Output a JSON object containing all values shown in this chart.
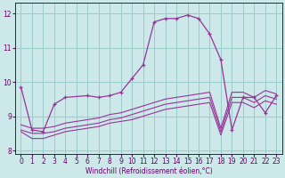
{
  "xlabel": "Windchill (Refroidissement éolien,°C)",
  "background_color": "#cce8e8",
  "grid_color": "#99cccc",
  "line_color": "#993399",
  "xlim": [
    -0.5,
    23.5
  ],
  "ylim": [
    7.9,
    12.3
  ],
  "yticks": [
    8,
    9,
    10,
    11,
    12
  ],
  "xticks": [
    0,
    1,
    2,
    3,
    4,
    5,
    6,
    7,
    8,
    9,
    10,
    11,
    12,
    13,
    14,
    15,
    16,
    17,
    18,
    19,
    20,
    21,
    22,
    23
  ],
  "series": [
    {
      "x": [
        0,
        1,
        2,
        3,
        4,
        6,
        7,
        8,
        9,
        10,
        11,
        12,
        13,
        14,
        15,
        16,
        17,
        18,
        19,
        20,
        21,
        22,
        23
      ],
      "y": [
        9.85,
        8.6,
        8.55,
        9.35,
        9.55,
        9.6,
        9.55,
        9.6,
        9.7,
        10.1,
        10.5,
        11.75,
        11.85,
        11.85,
        11.95,
        11.85,
        11.4,
        10.65,
        8.6,
        9.55,
        9.55,
        9.1,
        9.6
      ],
      "marker": true
    },
    {
      "x": [
        0,
        1,
        2,
        3,
        4,
        5,
        6,
        7,
        8,
        9,
        10,
        11,
        12,
        13,
        14,
        15,
        16,
        17,
        18,
        19,
        20,
        21,
        22,
        23
      ],
      "y": [
        8.75,
        8.65,
        8.65,
        8.7,
        8.8,
        8.85,
        8.9,
        8.95,
        9.05,
        9.1,
        9.2,
        9.3,
        9.4,
        9.5,
        9.55,
        9.6,
        9.65,
        9.7,
        8.65,
        9.7,
        9.7,
        9.55,
        9.75,
        9.65
      ],
      "marker": false
    },
    {
      "x": [
        0,
        1,
        2,
        3,
        4,
        5,
        6,
        7,
        8,
        9,
        10,
        11,
        12,
        13,
        14,
        15,
        16,
        17,
        18,
        19,
        20,
        21,
        22,
        23
      ],
      "y": [
        8.6,
        8.5,
        8.5,
        8.55,
        8.65,
        8.7,
        8.75,
        8.8,
        8.9,
        8.95,
        9.05,
        9.15,
        9.25,
        9.35,
        9.4,
        9.45,
        9.5,
        9.55,
        8.55,
        9.55,
        9.55,
        9.4,
        9.6,
        9.5
      ],
      "marker": false
    },
    {
      "x": [
        0,
        1,
        2,
        3,
        4,
        5,
        6,
        7,
        8,
        9,
        10,
        11,
        12,
        13,
        14,
        15,
        16,
        17,
        18,
        19,
        20,
        21,
        22,
        23
      ],
      "y": [
        8.55,
        8.35,
        8.35,
        8.45,
        8.55,
        8.6,
        8.65,
        8.7,
        8.8,
        8.85,
        8.9,
        9.0,
        9.1,
        9.2,
        9.25,
        9.3,
        9.35,
        9.4,
        8.45,
        9.4,
        9.4,
        9.25,
        9.45,
        9.35
      ],
      "marker": false
    }
  ],
  "tick_fontsize": 5.5,
  "xlabel_fontsize": 5.5,
  "tick_color": "#660066",
  "spine_color": "#660066"
}
